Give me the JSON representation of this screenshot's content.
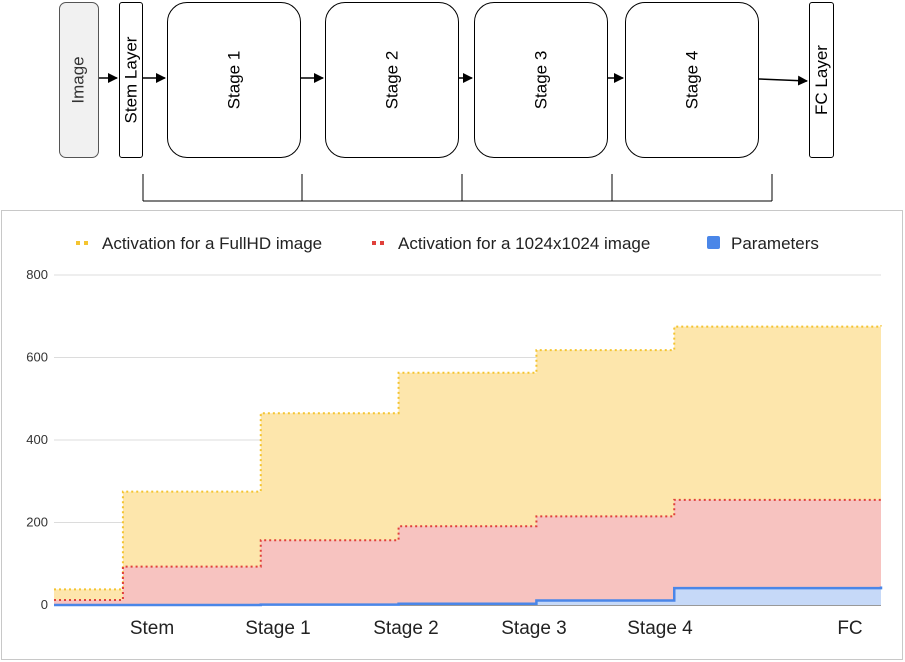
{
  "diagram": {
    "blocks": [
      {
        "id": "image",
        "label": "Image"
      },
      {
        "id": "stem",
        "label": "Stem Layer"
      },
      {
        "id": "stage1",
        "label": "Stage 1"
      },
      {
        "id": "stage2",
        "label": "Stage 2"
      },
      {
        "id": "stage3",
        "label": "Stage 3"
      },
      {
        "id": "stage4",
        "label": "Stage 4"
      },
      {
        "id": "fc",
        "label": "FC Layer"
      }
    ]
  },
  "chart_data": {
    "type": "area",
    "step": true,
    "categories": [
      "Stem",
      "Stage 1",
      "Stage 2",
      "Stage 3",
      "Stage 4",
      "FC"
    ],
    "x": [
      0,
      0.5,
      1.5,
      2.5,
      3.5,
      4.5,
      6
    ],
    "ylim": [
      0,
      800
    ],
    "yticks": [
      0,
      200,
      400,
      600,
      800
    ],
    "grid": true,
    "legend": "top",
    "series": [
      {
        "name": "Activation for a FullHD image",
        "color": "#f4c430",
        "fill": "#fde6ac",
        "style": "dotted",
        "values": [
          38,
          275,
          465,
          563,
          618,
          675,
          678
        ]
      },
      {
        "name": "Activation for a 1024x1024 image",
        "color": "#e0403a",
        "fill": "#f7c3c0",
        "style": "dotted",
        "values": [
          12,
          93,
          157,
          191,
          215,
          255,
          257
        ]
      },
      {
        "name": "Parameters",
        "color": "#4a86e8",
        "fill": "#c6d9f8",
        "style": "solid",
        "values": [
          0,
          0,
          1,
          3,
          11,
          41,
          45
        ]
      }
    ]
  }
}
